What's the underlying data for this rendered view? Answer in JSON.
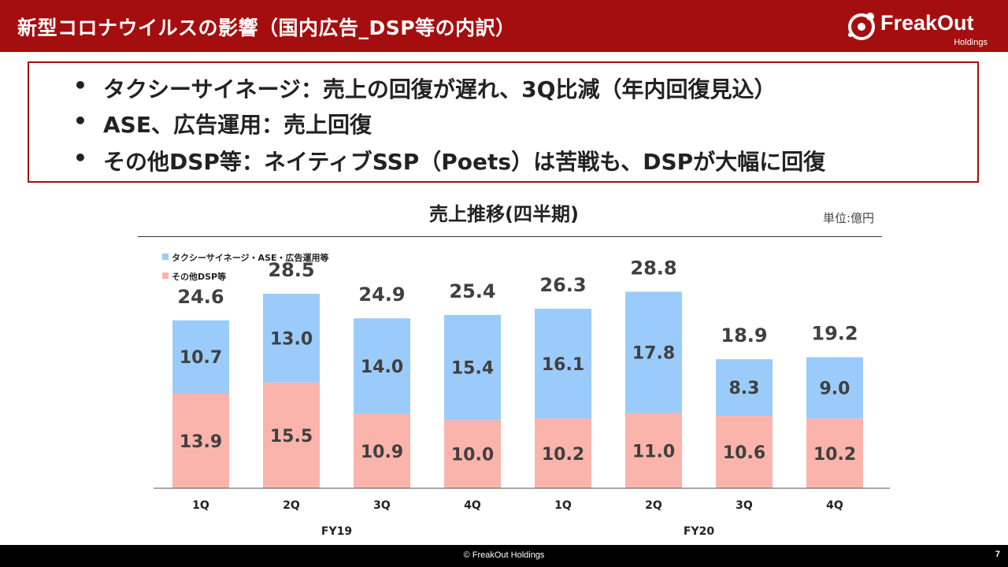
{
  "header": {
    "title": "新型コロナウイルスの影響（国内広告_DSP等の内訳）",
    "logo_name": "FreakOut",
    "logo_sub": "Holdings"
  },
  "bullets": [
    {
      "marker": "•",
      "text": "タクシーサイネージ：売上の回復が遅れ、3Q比減（年内回復見込）"
    },
    {
      "marker": "•",
      "text": "ASE、広告運用：売上回復"
    },
    {
      "marker": "•",
      "text": "その他DSP等：ネイティブSSP（Poets）は苦戦も、DSPが大幅に回復"
    }
  ],
  "unit_label": "単位:億円",
  "chart_data": {
    "type": "bar",
    "stacked": true,
    "title": "売上推移(四半期)",
    "categories": [
      "1Q",
      "2Q",
      "3Q",
      "4Q",
      "1Q",
      "2Q",
      "3Q",
      "4Q"
    ],
    "groups": [
      {
        "label": "FY19",
        "categories": [
          0,
          1,
          2,
          3
        ]
      },
      {
        "label": "FY20",
        "categories": [
          4,
          5,
          6,
          7
        ]
      }
    ],
    "series": [
      {
        "name": "その他DSP等",
        "color": "#fab4ac",
        "values": [
          13.9,
          15.5,
          10.9,
          10.0,
          10.2,
          11.0,
          10.6,
          10.2
        ]
      },
      {
        "name": "タクシーサイネージ・ASE・広告運用等",
        "color": "#9bcbfa",
        "values": [
          10.7,
          13.0,
          14.0,
          15.4,
          16.1,
          17.8,
          8.3,
          9.0
        ]
      }
    ],
    "totals": [
      24.6,
      28.5,
      24.9,
      25.4,
      26.3,
      28.8,
      18.9,
      19.2
    ],
    "legend_order": [
      1,
      0
    ],
    "ylim": [
      0,
      30
    ],
    "grid": false
  },
  "footer": {
    "copyright": "© FreakOut Holdings",
    "page": "7"
  }
}
